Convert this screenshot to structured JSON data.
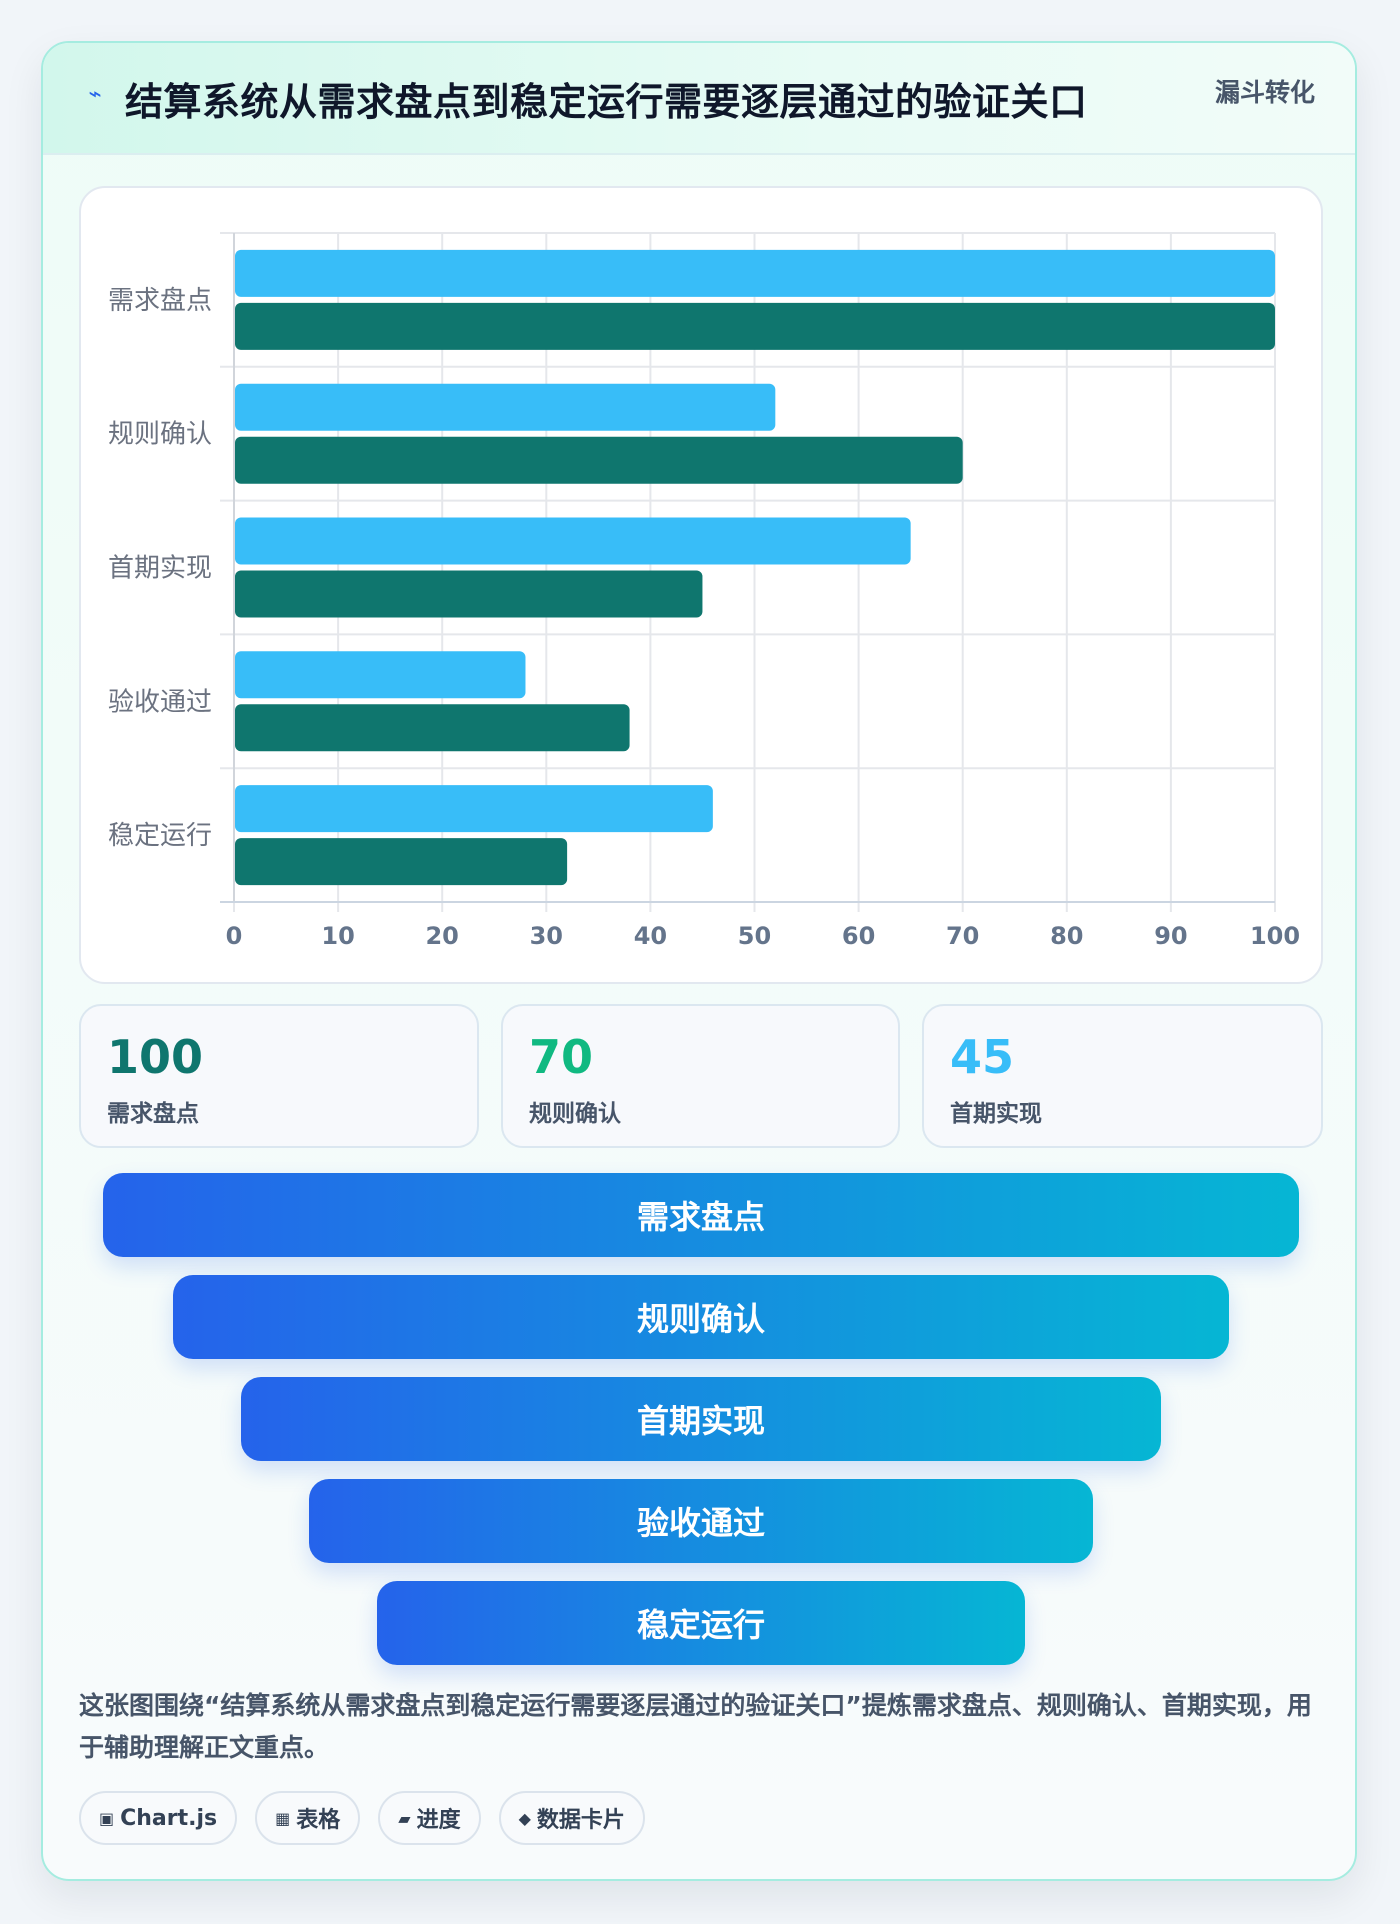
{
  "header": {
    "title": "结算系统从需求盘点到稳定运行需要逐层通过的验证关口",
    "type_tag": "漏斗转化",
    "icon": "lightning-icon"
  },
  "chart_data": {
    "type": "bar",
    "orientation": "horizontal",
    "categories": [
      "需求盘点",
      "规则确认",
      "首期实现",
      "验收通过",
      "稳定运行"
    ],
    "series": [
      {
        "values": [
          100,
          52,
          65,
          28,
          46
        ],
        "color": "#38bdf8"
      },
      {
        "values": [
          100,
          70,
          45,
          38,
          32
        ],
        "color": "#0f766e"
      }
    ],
    "xlim": [
      0,
      100
    ],
    "xticks": [
      0,
      10,
      20,
      30,
      40,
      50,
      60,
      70,
      80,
      90,
      100
    ],
    "grid": true,
    "legend": "none"
  },
  "stats": [
    {
      "value": "100",
      "label": "需求盘点",
      "color": "#0f766e"
    },
    {
      "value": "70",
      "label": "规则确认",
      "color": "#10b981"
    },
    {
      "value": "45",
      "label": "首期实现",
      "color": "#38bdf8"
    }
  ],
  "funnel": [
    "需求盘点",
    "规则确认",
    "首期实现",
    "验收通过",
    "稳定运行"
  ],
  "description": "这张图围绕“结算系统从需求盘点到稳定运行需要逐层通过的验证关口”提炼需求盘点、规则确认、首期实现，用于辅助理解正文重点。",
  "chips": [
    {
      "icon": "▣",
      "label": "Chart.js"
    },
    {
      "icon": "▦",
      "label": "表格"
    },
    {
      "icon": "▰",
      "label": "进度"
    },
    {
      "icon": "◆",
      "label": "数据卡片"
    }
  ]
}
